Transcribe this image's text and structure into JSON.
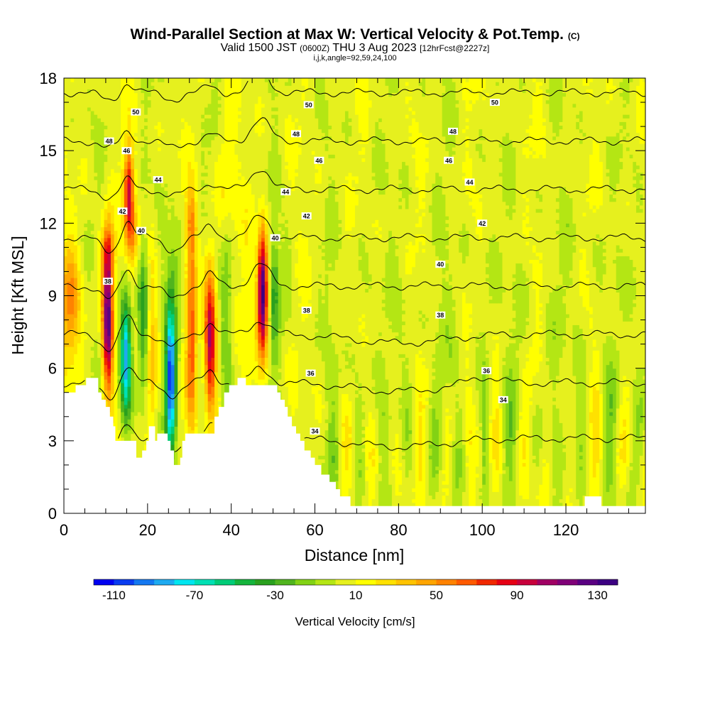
{
  "title": {
    "main": "Wind-Parallel Section at Max W: Vertical Velocity & Pot.Temp.",
    "main_suffix": "(C)",
    "valid_prefix": "Valid 1500 JST",
    "valid_utc": "(0600Z)",
    "valid_date": "THU 3 Aug 2023",
    "forecast_tag": "[12hrFcst@2227z]",
    "params": "i,j,k,angle=92,59,24,100"
  },
  "chart_data": {
    "type": "heatmap",
    "xlabel": "Distance [nm]",
    "ylabel": "Height [Kft MSL]",
    "xlim": [
      0,
      139
    ],
    "ylim": [
      0,
      18
    ],
    "x_ticks": [
      0,
      20,
      40,
      60,
      80,
      100,
      120
    ],
    "y_ticks": [
      0,
      3,
      6,
      9,
      12,
      15,
      18
    ],
    "colorbar": {
      "title": "Vertical Velocity [cm/s]",
      "min": -120,
      "max": 140,
      "tick_labels": [
        -110,
        -70,
        -30,
        10,
        50,
        90,
        130
      ],
      "colors": [
        "#0000f0",
        "#0a3cf0",
        "#1478f0",
        "#1eaaf0",
        "#00e6f0",
        "#00e0b4",
        "#00cc78",
        "#14b43c",
        "#2aa01e",
        "#50b41e",
        "#82d214",
        "#b4e614",
        "#e6f01e",
        "#ffff00",
        "#ffe100",
        "#ffc300",
        "#ffa500",
        "#ff8200",
        "#ff5a00",
        "#f02800",
        "#e60014",
        "#c8003c",
        "#a00064",
        "#800078",
        "#5a0082",
        "#3c0082"
      ]
    },
    "updraft_cores": [
      {
        "x": 10.5,
        "w": 125
      },
      {
        "x": 15.5,
        "w": 85
      },
      {
        "x": 30.5,
        "w": 60
      },
      {
        "x": 35,
        "w": 105
      },
      {
        "x": 47.5,
        "w": 135
      }
    ],
    "downdraft_cores": [
      {
        "x": 15,
        "w": -95
      },
      {
        "x": 25.5,
        "w": -115
      }
    ],
    "terrain_height_kft": [
      [
        0,
        5.0
      ],
      [
        2.8,
        5.0
      ],
      [
        2.8,
        5.3
      ],
      [
        5.3,
        5.3
      ],
      [
        5.3,
        5.6
      ],
      [
        8.2,
        5.6
      ],
      [
        8.2,
        5.0
      ],
      [
        9.0,
        5.0
      ],
      [
        9.0,
        4.7
      ],
      [
        10.0,
        4.7
      ],
      [
        10.0,
        4.4
      ],
      [
        11.0,
        4.4
      ],
      [
        11.0,
        4.0
      ],
      [
        11.8,
        4.0
      ],
      [
        11.8,
        3.6
      ],
      [
        12.3,
        3.6
      ],
      [
        12.3,
        3.0
      ],
      [
        17.3,
        3.0
      ],
      [
        17.3,
        2.3
      ],
      [
        18.7,
        2.3
      ],
      [
        18.7,
        2.6
      ],
      [
        19.7,
        2.6
      ],
      [
        19.7,
        3.0
      ],
      [
        20.3,
        3.0
      ],
      [
        20.3,
        3.6
      ],
      [
        21.8,
        3.6
      ],
      [
        21.8,
        3.0
      ],
      [
        22.3,
        3.0
      ],
      [
        22.3,
        3.3
      ],
      [
        24.8,
        3.3
      ],
      [
        24.8,
        3.0
      ],
      [
        25.5,
        3.0
      ],
      [
        25.5,
        2.6
      ],
      [
        26.3,
        2.6
      ],
      [
        26.3,
        2.0
      ],
      [
        27.8,
        2.0
      ],
      [
        27.8,
        2.3
      ],
      [
        28.3,
        2.3
      ],
      [
        28.3,
        3.0
      ],
      [
        29.0,
        3.0
      ],
      [
        29.0,
        3.3
      ],
      [
        36.0,
        3.3
      ],
      [
        36.0,
        4.0
      ],
      [
        37.0,
        4.0
      ],
      [
        37.0,
        4.4
      ],
      [
        38.3,
        4.4
      ],
      [
        38.3,
        5.0
      ],
      [
        39.5,
        5.0
      ],
      [
        39.5,
        5.3
      ],
      [
        41.5,
        5.3
      ],
      [
        41.5,
        5.6
      ],
      [
        43.5,
        5.6
      ],
      [
        43.5,
        5.3
      ],
      [
        51.0,
        5.3
      ],
      [
        51.0,
        5.0
      ],
      [
        51.8,
        5.0
      ],
      [
        51.8,
        4.7
      ],
      [
        52.8,
        4.7
      ],
      [
        52.8,
        4.4
      ],
      [
        53.5,
        4.4
      ],
      [
        53.5,
        4.0
      ],
      [
        54.5,
        4.0
      ],
      [
        54.5,
        3.6
      ],
      [
        55.5,
        3.6
      ],
      [
        55.5,
        3.3
      ],
      [
        56.5,
        3.3
      ],
      [
        56.5,
        3.0
      ],
      [
        57.5,
        3.0
      ],
      [
        57.5,
        2.6
      ],
      [
        59.0,
        2.6
      ],
      [
        59.0,
        2.3
      ],
      [
        60.0,
        2.3
      ],
      [
        60.0,
        2.0
      ],
      [
        61.5,
        2.0
      ],
      [
        61.5,
        1.6
      ],
      [
        63.5,
        1.6
      ],
      [
        63.5,
        1.3
      ],
      [
        65.0,
        1.3
      ],
      [
        65.0,
        1.0
      ],
      [
        66.0,
        1.0
      ],
      [
        66.0,
        0.7
      ],
      [
        68.5,
        0.7
      ],
      [
        68.5,
        0.3
      ],
      [
        124.5,
        0.3
      ],
      [
        124.5,
        0.7
      ],
      [
        128.5,
        0.7
      ],
      [
        128.5,
        0.3
      ],
      [
        139,
        0.3
      ]
    ],
    "pot_temp_contours": [
      {
        "level": 34,
        "labels": [
          {
            "x": 60,
            "y": 3.4
          },
          {
            "x": 105,
            "y": 4.7
          }
        ]
      },
      {
        "level": 36,
        "labels": [
          {
            "x": 59,
            "y": 5.8
          },
          {
            "x": 101,
            "y": 5.9
          }
        ]
      },
      {
        "level": 38,
        "labels": [
          {
            "x": 10.5,
            "y": 9.6
          },
          {
            "x": 58,
            "y": 8.4
          },
          {
            "x": 90,
            "y": 8.2
          }
        ]
      },
      {
        "level": 40,
        "labels": [
          {
            "x": 18.5,
            "y": 11.7
          },
          {
            "x": 50.5,
            "y": 11.4
          },
          {
            "x": 90,
            "y": 10.3
          }
        ]
      },
      {
        "level": 42,
        "labels": [
          {
            "x": 14,
            "y": 12.5
          },
          {
            "x": 58,
            "y": 12.3
          },
          {
            "x": 100,
            "y": 12.0
          }
        ]
      },
      {
        "level": 44,
        "labels": [
          {
            "x": 22.5,
            "y": 13.8
          },
          {
            "x": 53,
            "y": 13.3
          },
          {
            "x": 97,
            "y": 13.7
          }
        ]
      },
      {
        "level": 46,
        "labels": [
          {
            "x": 15,
            "y": 15.0
          },
          {
            "x": 61,
            "y": 14.6
          },
          {
            "x": 92,
            "y": 14.6
          }
        ]
      },
      {
        "level": 48,
        "labels": [
          {
            "x": 10.8,
            "y": 15.4
          },
          {
            "x": 55.5,
            "y": 15.7
          },
          {
            "x": 93,
            "y": 15.8
          }
        ]
      },
      {
        "level": 50,
        "labels": [
          {
            "x": 17.2,
            "y": 16.6
          },
          {
            "x": 58.5,
            "y": 16.9
          },
          {
            "x": 103,
            "y": 17.0
          }
        ]
      }
    ]
  }
}
